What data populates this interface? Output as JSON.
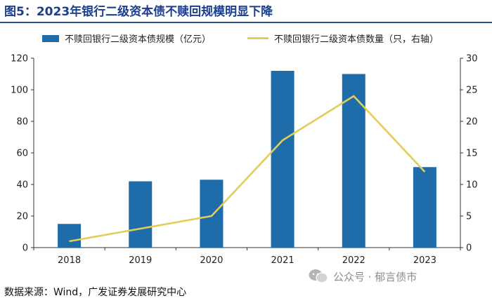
{
  "figure": {
    "title": "图5：2023年银行二级资本债不赎回规模明显下降",
    "source": "数据来源：Wind，广发证券发展研究中心",
    "watermark": "公众号 · 郁言债市"
  },
  "colors": {
    "bar": "#1f6cab",
    "line": "#e2cc5a",
    "title": "#1b3e8f"
  },
  "chart_data": {
    "type": "bar",
    "title": "",
    "categories": [
      "2018",
      "2019",
      "2020",
      "2021",
      "2022",
      "2023"
    ],
    "series": [
      {
        "name": "不赎回银行二级资本债规模（亿元）",
        "type": "bar",
        "axis": "left",
        "values": [
          15,
          42,
          43,
          112,
          110,
          51
        ]
      },
      {
        "name": "不赎回银行二级资本债数量（只，右轴）",
        "type": "line",
        "axis": "right",
        "values": [
          1,
          3,
          5,
          17,
          24,
          12
        ]
      }
    ],
    "y_left": {
      "ylim": [
        0,
        120
      ],
      "ticks": [
        "0",
        "20",
        "40",
        "60",
        "80",
        "100",
        "120"
      ]
    },
    "y_right": {
      "ylim": [
        0,
        30
      ],
      "ticks": [
        "0",
        "5",
        "10",
        "15",
        "20",
        "25",
        "30"
      ]
    },
    "legend_position": "top",
    "grid": false
  }
}
